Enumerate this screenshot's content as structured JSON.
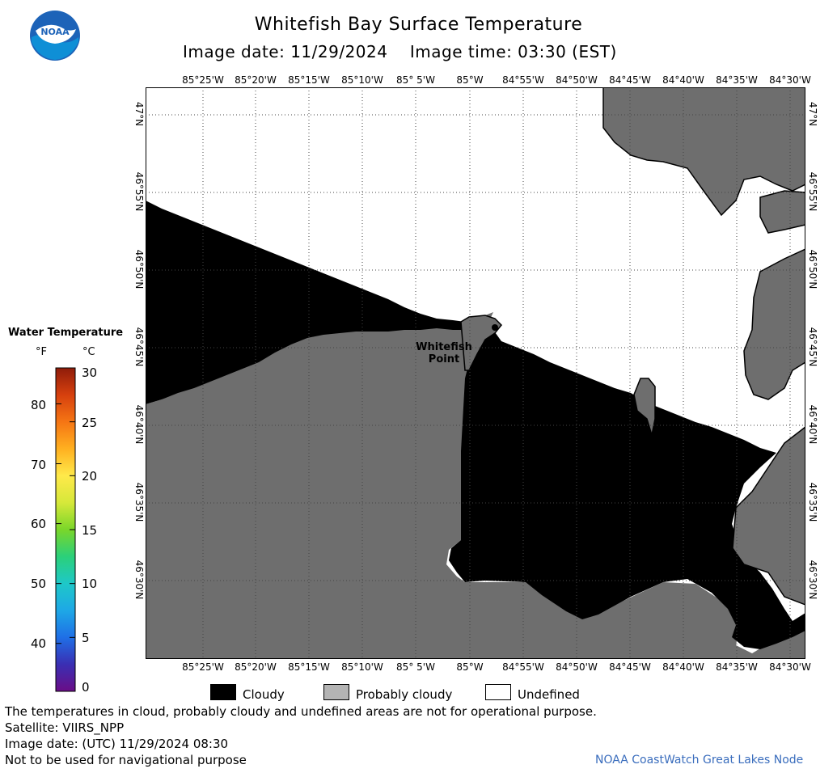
{
  "header": {
    "title": "Whitefish Bay Surface Temperature",
    "subtitle": "Image date: 11/29/2024    Image time: 03:30 (EST)",
    "logo_text": "NOAA"
  },
  "map": {
    "lon_labels": [
      "85°25'W",
      "85°20'W",
      "85°15'W",
      "85°10'W",
      "85° 5'W",
      "85°W",
      "84°55'W",
      "84°50'W",
      "84°45'W",
      "84°40'W",
      "84°35'W",
      "84°30'W"
    ],
    "lat_labels": [
      "47°N",
      "46°55'N",
      "46°50'N",
      "46°45'N",
      "46°40'N",
      "46°35'N",
      "46°30'N"
    ],
    "place_label_line1": "Whitefish",
    "place_label_line2": "Point",
    "colors": {
      "cloudy": "#000000",
      "probably_cloudy": "#6e6e6e",
      "land": "#6e6e6e",
      "undefined": "#ffffff"
    }
  },
  "legend": {
    "title": "Water Temperature",
    "unit_f": "°F",
    "unit_c": "°C",
    "f_ticks": [
      "80",
      "70",
      "60",
      "50",
      "40"
    ],
    "c_ticks": [
      "30",
      "25",
      "20",
      "15",
      "10",
      "5",
      "0"
    ],
    "f_values": [
      80,
      70,
      60,
      50,
      40
    ],
    "c_values": [
      30,
      25,
      20,
      15,
      10,
      5,
      0
    ],
    "colormap": [
      "#6a0d87",
      "#3a2fb3",
      "#1f6fe6",
      "#1ea8e6",
      "#1ec8c8",
      "#2bd07a",
      "#7ad62a",
      "#d6e83a",
      "#ffe94a",
      "#ffb020",
      "#f57514",
      "#d6400e",
      "#8f1c0a"
    ]
  },
  "key": {
    "cloudy": "Cloudy",
    "probably_cloudy": "Probably cloudy",
    "undefined": "Undefined"
  },
  "footer": {
    "line1": "The temperatures in cloud, probably cloudy and undefined areas are not for operational purpose.",
    "line2": "Satellite: VIIRS_NPP",
    "line3": "Image date: (UTC) 11/29/2024  08:30",
    "line4": "Not to be used for navigational purpose",
    "credit": "NOAA CoastWatch Great Lakes Node"
  }
}
